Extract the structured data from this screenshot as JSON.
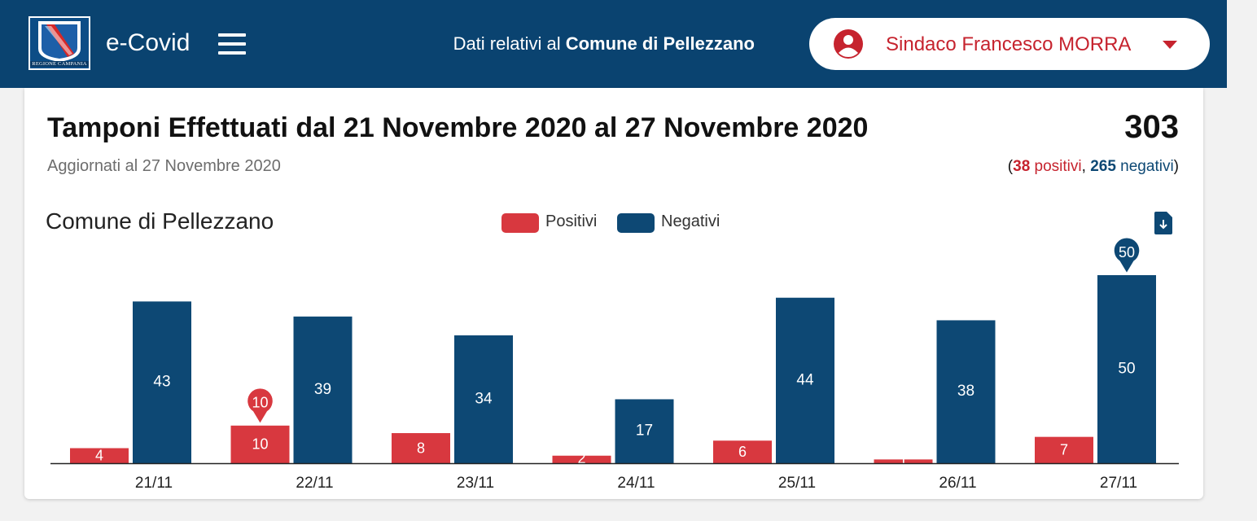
{
  "header": {
    "logo_text": "REGIONE CAMPANIA",
    "app_title": "e-Covid",
    "context_prefix": "Dati relativi al",
    "context_place": "Comune di Pellezzano",
    "user_name": "Sindaco Francesco MORRA"
  },
  "summary": {
    "title": "Tamponi Effettuati dal 21 Novembre 2020 al 27 Novembre 2020",
    "updated": "Aggiornati al 27 Novembre 2020",
    "total": "303",
    "positives": "38",
    "positives_label": "positivi",
    "negatives": "265",
    "negatives_label": "negativi"
  },
  "colors": {
    "header_bg": "#0a4370",
    "positive": "#d8383f",
    "negative": "#0d4874",
    "accent_red": "#c6232e"
  },
  "icons": {
    "menu": "hamburger-icon",
    "user": "account-circle-icon",
    "caret": "caret-down-icon",
    "export": "file-download-icon"
  },
  "chart_data": {
    "type": "bar",
    "title": "Comune di Pellezzano",
    "categories": [
      "21/11",
      "22/11",
      "23/11",
      "24/11",
      "25/11",
      "26/11",
      "27/11"
    ],
    "series": [
      {
        "name": "Positivi",
        "color": "#d8383f",
        "values": [
          4,
          10,
          8,
          2,
          6,
          1,
          7
        ]
      },
      {
        "name": "Negativi",
        "color": "#0d4874",
        "values": [
          43,
          39,
          34,
          17,
          44,
          38,
          50
        ]
      }
    ],
    "ylim": [
      0,
      50
    ],
    "grid": false,
    "legend": "top-center",
    "max_markers": [
      {
        "series": "Positivi",
        "category": "22/11",
        "value": 10
      },
      {
        "series": "Negativi",
        "category": "27/11",
        "value": 50
      }
    ]
  }
}
